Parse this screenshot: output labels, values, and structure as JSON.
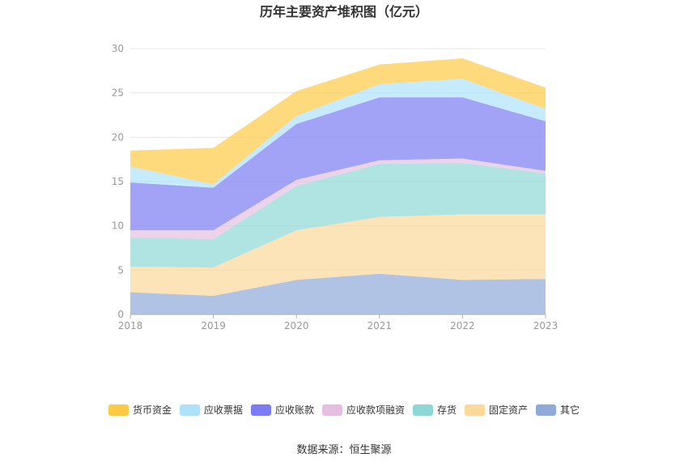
{
  "chart_data": {
    "type": "area",
    "stacked": true,
    "title": "历年主要资产堆积图（亿元）",
    "categories": [
      "2018",
      "2019",
      "2020",
      "2021",
      "2022",
      "2023"
    ],
    "ylim": [
      0,
      30
    ],
    "yticks": [
      "0",
      "5",
      "10",
      "15",
      "20",
      "25",
      "30"
    ],
    "grid": true,
    "legend_position": "bottom",
    "series": [
      {
        "name": "其它",
        "color": "#8fa9d8",
        "values": [
          2.5,
          2.1,
          3.9,
          4.6,
          3.9,
          4.0
        ]
      },
      {
        "name": "固定资产",
        "color": "#fcd89a",
        "values": [
          2.9,
          3.2,
          5.6,
          6.4,
          7.4,
          7.3
        ]
      },
      {
        "name": "存货",
        "color": "#8dd8d6",
        "values": [
          3.3,
          3.2,
          5.0,
          6.0,
          5.8,
          4.6
        ]
      },
      {
        "name": "应收款项融资",
        "color": "#e5bfe2",
        "values": [
          0.8,
          1.0,
          0.7,
          0.4,
          0.5,
          0.3
        ]
      },
      {
        "name": "应收账款",
        "color": "#7b7cf4",
        "values": [
          5.4,
          4.8,
          6.3,
          7.1,
          6.9,
          5.6
        ]
      },
      {
        "name": "应收票据",
        "color": "#aee2fb",
        "values": [
          1.8,
          0.4,
          0.9,
          1.5,
          2.1,
          1.4
        ]
      },
      {
        "name": "货币资金",
        "color": "#fdca45",
        "values": [
          1.8,
          4.1,
          2.8,
          2.2,
          2.3,
          2.4
        ]
      }
    ],
    "legend_order": [
      "货币资金",
      "应收票据",
      "应收账款",
      "应收款项融资",
      "存货",
      "固定资产",
      "其它"
    ]
  },
  "source": "数据来源：恒生聚源"
}
